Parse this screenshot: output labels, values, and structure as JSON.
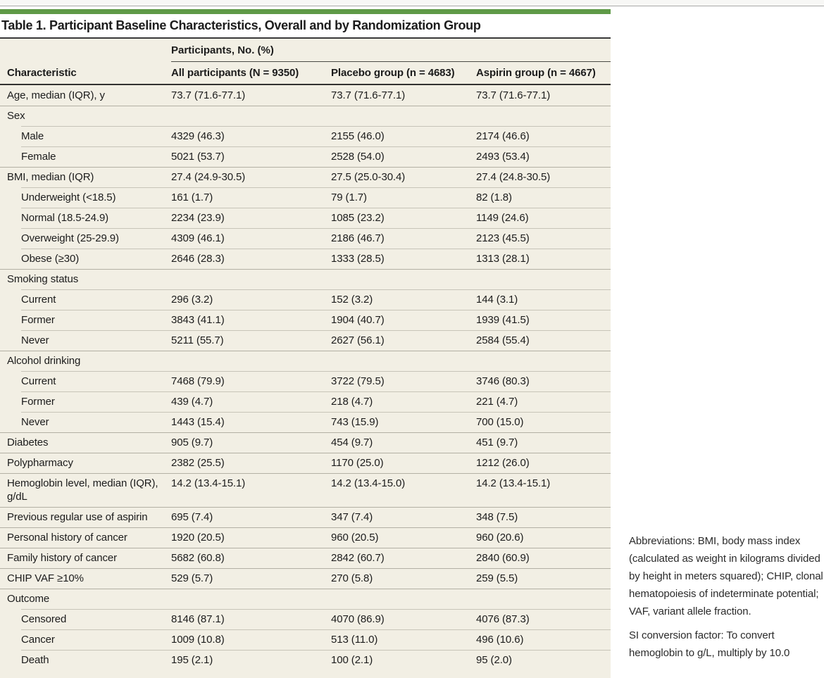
{
  "table": {
    "title": "Table 1. Participant Baseline Characteristics, Overall and by Randomization Group",
    "spanner": "Participants, No. (%)",
    "columns": [
      "Characteristic",
      "All participants (N = 9350)",
      "Placebo group (n = 4683)",
      "Aspirin group (n = 4667)"
    ],
    "rows": [
      {
        "label": "Age, median (IQR), y",
        "indent": 0,
        "type": "data",
        "values": [
          "73.7 (71.6-77.1)",
          "73.7 (71.6-77.1)",
          "73.7 (71.6-77.1)"
        ]
      },
      {
        "label": "Sex",
        "indent": 0,
        "type": "section",
        "values": [
          "",
          "",
          ""
        ]
      },
      {
        "label": "Male",
        "indent": 1,
        "type": "data",
        "values": [
          "4329 (46.3)",
          "2155 (46.0)",
          "2174 (46.6)"
        ]
      },
      {
        "label": "Female",
        "indent": 1,
        "type": "data",
        "values": [
          "5021 (53.7)",
          "2528 (54.0)",
          "2493 (53.4)"
        ]
      },
      {
        "label": "BMI, median (IQR)",
        "indent": 0,
        "type": "data",
        "values": [
          "27.4 (24.9-30.5)",
          "27.5 (25.0-30.4)",
          "27.4 (24.8-30.5)"
        ]
      },
      {
        "label": "Underweight (<18.5)",
        "indent": 1,
        "type": "data",
        "values": [
          "161 (1.7)",
          "79 (1.7)",
          "82 (1.8)"
        ]
      },
      {
        "label": "Normal (18.5-24.9)",
        "indent": 1,
        "type": "data",
        "values": [
          "2234 (23.9)",
          "1085 (23.2)",
          "1149 (24.6)"
        ]
      },
      {
        "label": "Overweight (25-29.9)",
        "indent": 1,
        "type": "data",
        "values": [
          "4309 (46.1)",
          "2186 (46.7)",
          "2123 (45.5)"
        ]
      },
      {
        "label": "Obese (≥30)",
        "indent": 1,
        "type": "data",
        "values": [
          "2646 (28.3)",
          "1333 (28.5)",
          "1313 (28.1)"
        ]
      },
      {
        "label": "Smoking status",
        "indent": 0,
        "type": "section",
        "values": [
          "",
          "",
          ""
        ]
      },
      {
        "label": "Current",
        "indent": 1,
        "type": "data",
        "values": [
          "296 (3.2)",
          "152 (3.2)",
          "144 (3.1)"
        ]
      },
      {
        "label": "Former",
        "indent": 1,
        "type": "data",
        "values": [
          "3843 (41.1)",
          "1904 (40.7)",
          "1939 (41.5)"
        ]
      },
      {
        "label": "Never",
        "indent": 1,
        "type": "data",
        "values": [
          "5211 (55.7)",
          "2627 (56.1)",
          "2584 (55.4)"
        ]
      },
      {
        "label": "Alcohol drinking",
        "indent": 0,
        "type": "section",
        "values": [
          "",
          "",
          ""
        ]
      },
      {
        "label": "Current",
        "indent": 1,
        "type": "data",
        "values": [
          "7468 (79.9)",
          "3722 (79.5)",
          "3746 (80.3)"
        ]
      },
      {
        "label": "Former",
        "indent": 1,
        "type": "data",
        "values": [
          "439 (4.7)",
          "218 (4.7)",
          "221 (4.7)"
        ]
      },
      {
        "label": "Never",
        "indent": 1,
        "type": "data",
        "values": [
          "1443 (15.4)",
          "743 (15.9)",
          "700 (15.0)"
        ]
      },
      {
        "label": "Diabetes",
        "indent": 0,
        "type": "data",
        "values": [
          "905 (9.7)",
          "454 (9.7)",
          "451 (9.7)"
        ]
      },
      {
        "label": "Polypharmacy",
        "indent": 0,
        "type": "data",
        "values": [
          "2382 (25.5)",
          "1170 (25.0)",
          "1212 (26.0)"
        ]
      },
      {
        "label": "Hemoglobin level, median (IQR), g/dL",
        "indent": 0,
        "type": "data",
        "values": [
          "14.2 (13.4-15.1)",
          "14.2 (13.4-15.0)",
          "14.2 (13.4-15.1)"
        ]
      },
      {
        "label": "Previous regular use of aspirin",
        "indent": 0,
        "type": "data",
        "values": [
          "695 (7.4)",
          "347 (7.4)",
          "348 (7.5)"
        ]
      },
      {
        "label": "Personal history of cancer",
        "indent": 0,
        "type": "data",
        "values": [
          "1920 (20.5)",
          "960 (20.5)",
          "960 (20.6)"
        ]
      },
      {
        "label": "Family history of cancer",
        "indent": 0,
        "type": "data",
        "values": [
          "5682 (60.8)",
          "2842 (60.7)",
          "2840 (60.9)"
        ]
      },
      {
        "label": "CHIP VAF ≥10%",
        "indent": 0,
        "type": "data",
        "values": [
          "529 (5.7)",
          "270 (5.8)",
          "259 (5.5)"
        ]
      },
      {
        "label": "Outcome",
        "indent": 0,
        "type": "section",
        "values": [
          "",
          "",
          ""
        ]
      },
      {
        "label": "Censored",
        "indent": 1,
        "type": "data",
        "values": [
          "8146 (87.1)",
          "4070 (86.9)",
          "4076 (87.3)"
        ]
      },
      {
        "label": "Cancer",
        "indent": 1,
        "type": "data",
        "values": [
          "1009 (10.8)",
          "513 (11.0)",
          "496 (10.6)"
        ]
      },
      {
        "label": "Death",
        "indent": 1,
        "type": "data",
        "values": [
          "195 (2.1)",
          "100 (2.1)",
          "95 (2.0)"
        ]
      }
    ]
  },
  "notes": {
    "abbreviations": "Abbreviations: BMI, body mass index (calculated as weight in kilograms divided by height in meters squared); CHIP, clonal hematopoiesis of indeterminate potential; VAF, variant allele fraction.",
    "si_conversion": "SI conversion factor: To convert hemoglobin to g/L, multiply by 10.0"
  },
  "colors": {
    "accent_green": "#5f9a47",
    "table_background": "#f2efe4",
    "rule_dark": "#333230",
    "row_divider": "#b3b0a4",
    "row_divider_indented": "#c7c4b8"
  }
}
